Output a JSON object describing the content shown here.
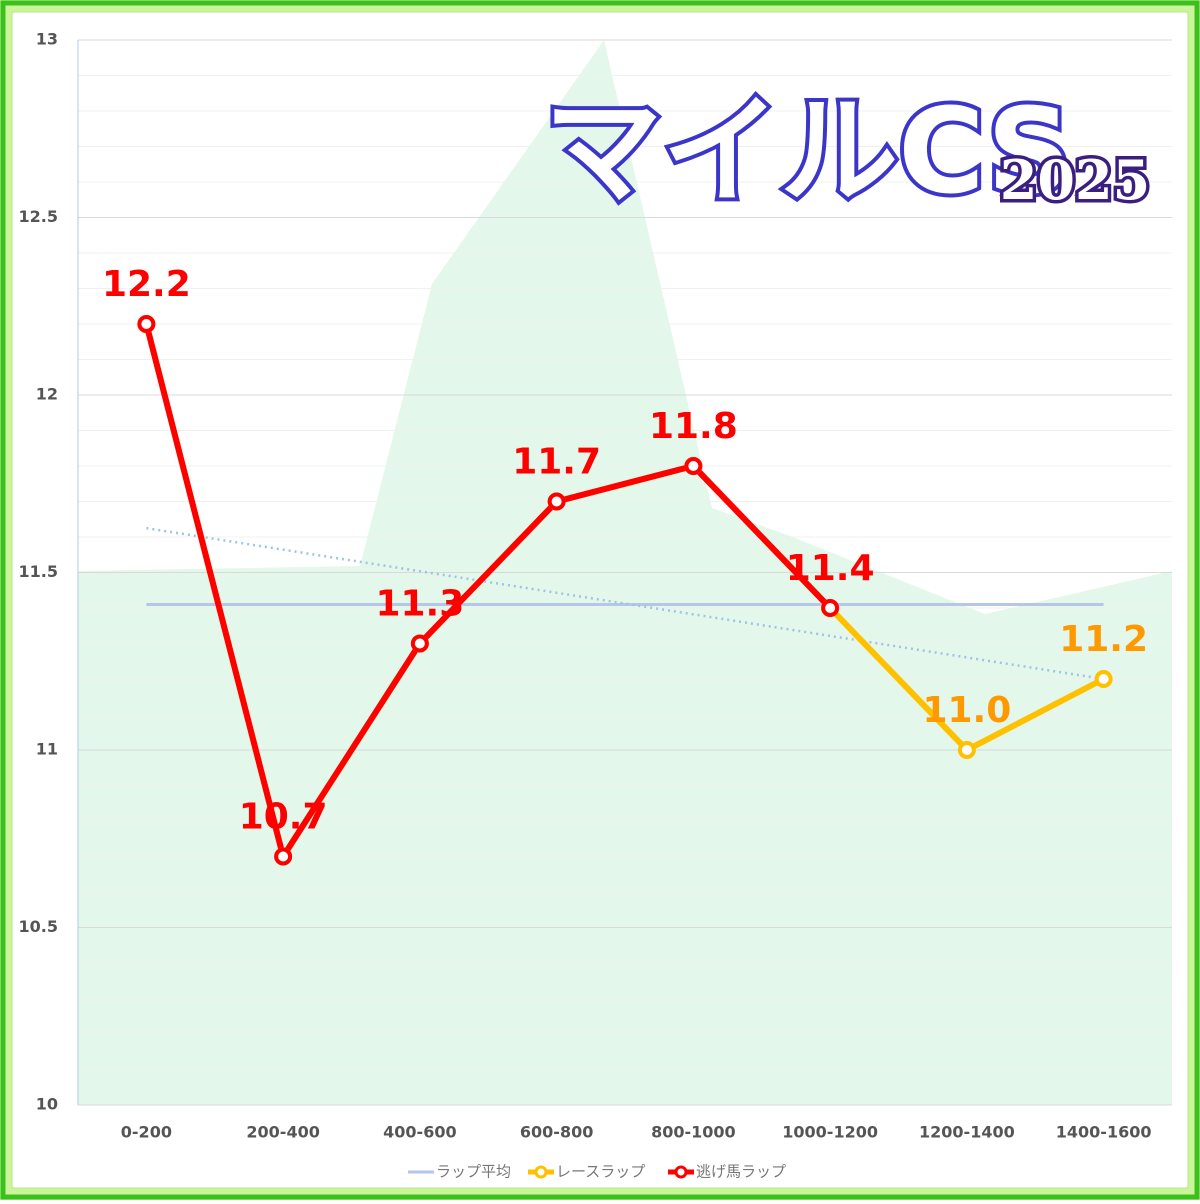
{
  "chart_data": {
    "type": "line",
    "title": "マイルCS",
    "subtitle": "2025",
    "categories": [
      "0-200",
      "200-400",
      "400-600",
      "600-800",
      "800-1000",
      "1000-1200",
      "1200-1400",
      "1400-1600"
    ],
    "series": [
      {
        "name": "ラップ平均",
        "color": "#b4c7e7",
        "values": [
          11.41,
          11.41,
          11.41,
          11.41,
          11.41,
          11.41,
          11.41,
          11.41
        ],
        "markers": false
      },
      {
        "name": "レースラップ",
        "color": "#ffc000",
        "label_color": "#ff9900",
        "values": [
          12.2,
          10.7,
          11.3,
          11.7,
          11.8,
          11.4,
          11.0,
          11.2
        ],
        "value_labels": [
          null,
          null,
          null,
          null,
          null,
          null,
          "11.0",
          "11.2"
        ],
        "markers": true
      },
      {
        "name": "逃げ馬ラップ",
        "color": "#ff0000",
        "label_color": "#ff0000",
        "values": [
          12.2,
          10.7,
          11.3,
          11.7,
          11.8,
          11.4,
          null,
          null
        ],
        "value_labels": [
          "12.2",
          "10.7",
          "11.3",
          "11.7",
          "11.8",
          "11.4",
          null,
          null
        ],
        "markers": true
      }
    ],
    "trendline": {
      "color": "#9dc3e6",
      "values": [
        11.625,
        11.2
      ]
    },
    "ylim": [
      10,
      13
    ],
    "yticks": [
      10,
      10.5,
      11,
      11.5,
      12,
      12.5,
      13
    ],
    "minor_grid_step": 0.1,
    "grid": true,
    "legend": "bottom"
  }
}
